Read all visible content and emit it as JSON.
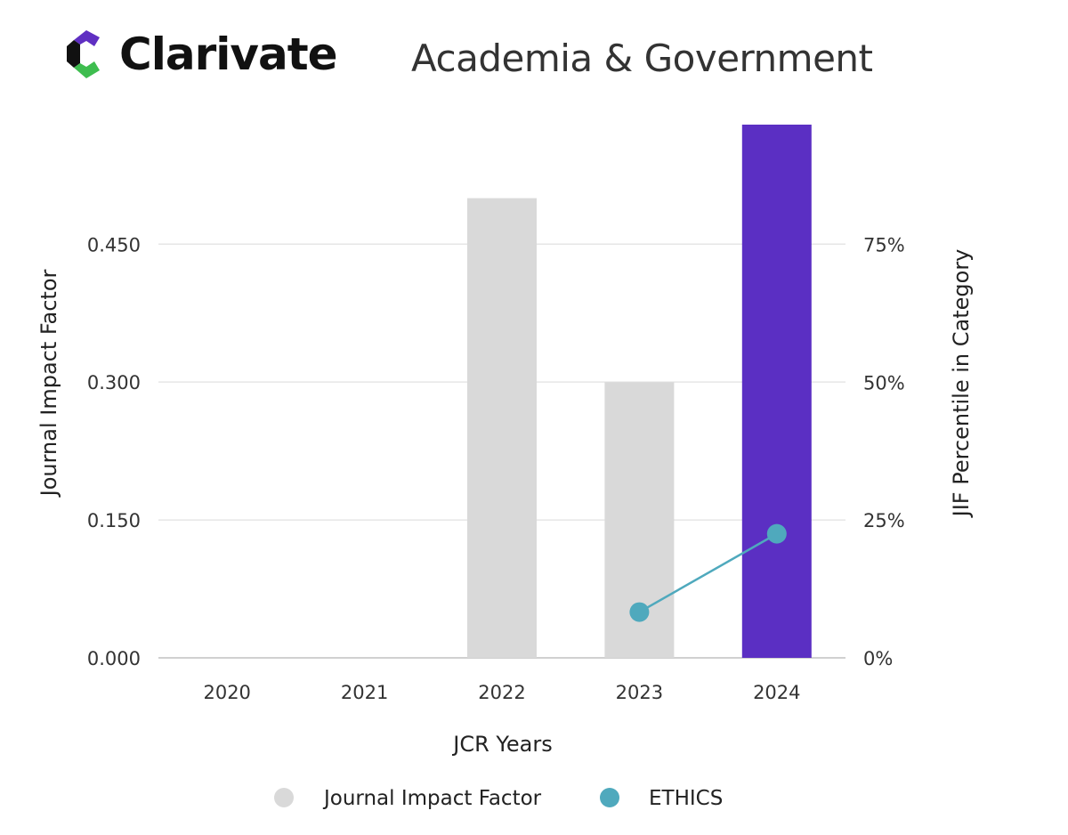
{
  "header": {
    "brand": "Clarivate",
    "subtitle": "Academia & Government",
    "logo_colors": {
      "top": "#5f2fc2",
      "left": "#111111",
      "bottom": "#3ebd4f"
    }
  },
  "chart_data": {
    "type": "bar",
    "xlabel": "JCR Years",
    "ylabel": "Journal Impact Factor",
    "y2label": "JIF Percentile in Category",
    "categories": [
      "2020",
      "2021",
      "2022",
      "2023",
      "2024"
    ],
    "ylim": [
      0,
      0.58
    ],
    "yticks": [
      "0.000",
      "0.150",
      "0.300",
      "0.450"
    ],
    "y2lim": [
      0,
      96.7
    ],
    "y2ticks": [
      "0%",
      "25%",
      "50%",
      "75%"
    ],
    "grid": true,
    "legend_placement": "bottom",
    "series": [
      {
        "name": "Journal Impact Factor",
        "kind": "bar",
        "axis": "left",
        "values": [
          null,
          null,
          0.5,
          0.3,
          0.58
        ],
        "colors": [
          "#d9d9d9",
          "#d9d9d9",
          "#d9d9d9",
          "#d9d9d9",
          "#5b2fc3"
        ],
        "legend_color": "#d9d9d9"
      },
      {
        "name": "ETHICS",
        "kind": "line",
        "axis": "right",
        "values": [
          null,
          null,
          null,
          8.3,
          22.5
        ],
        "color": "#4fa9bd"
      }
    ]
  }
}
